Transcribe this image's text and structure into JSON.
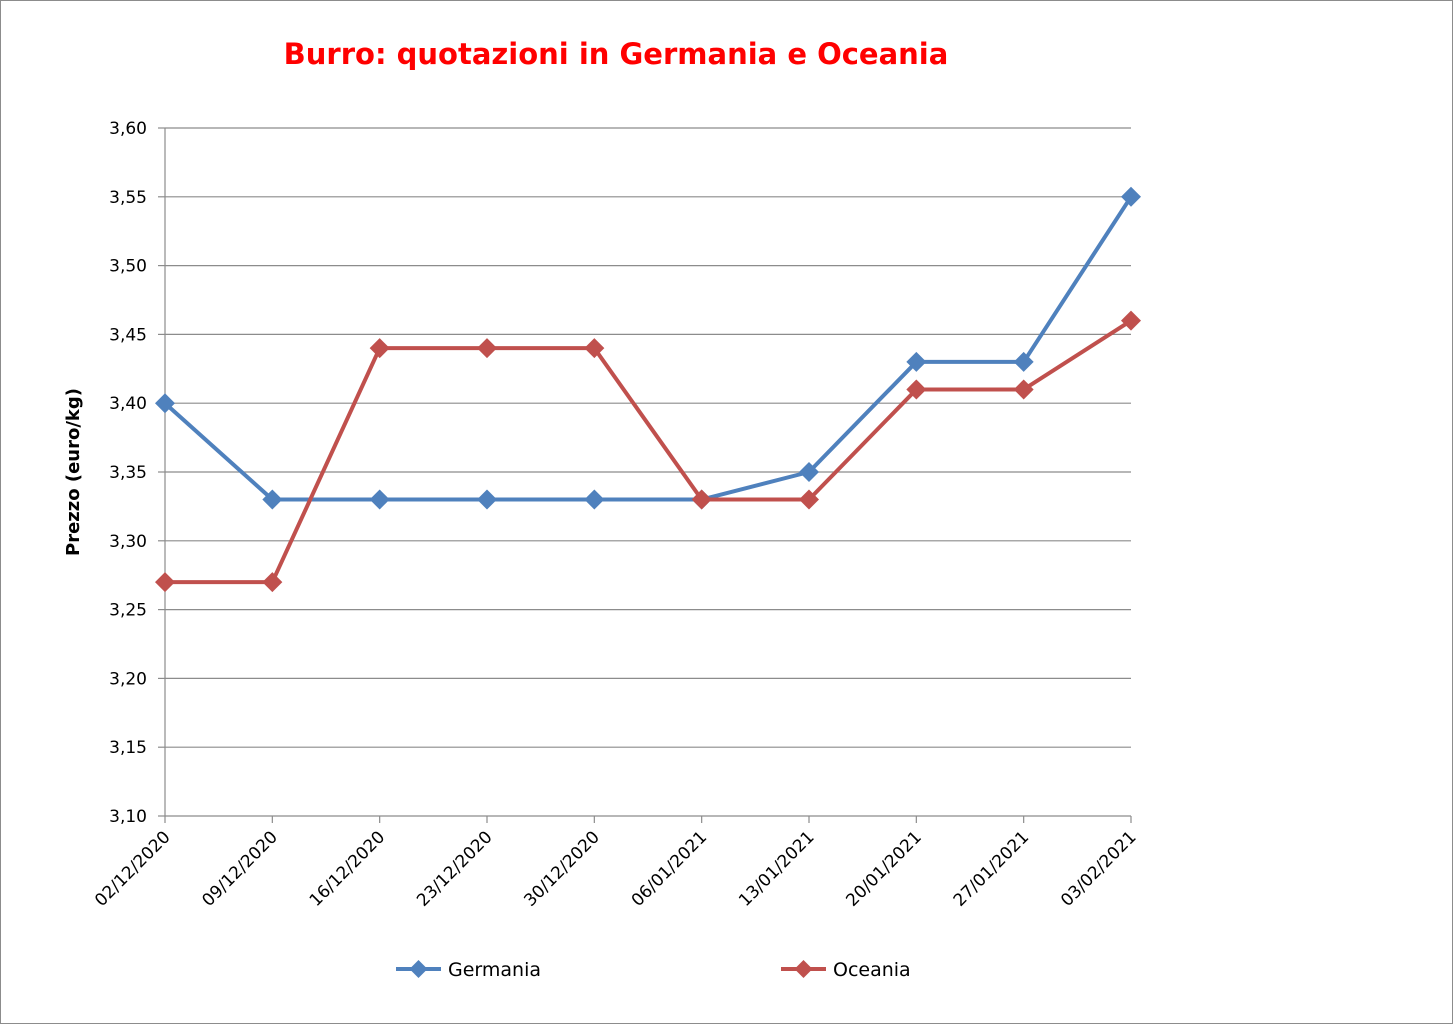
{
  "chart_data": {
    "type": "line",
    "title": "Burro: quotazioni in Germania e Oceania",
    "title_color": "#ff0000",
    "ylabel": "Prezzo (euro/kg)",
    "xlabel": "",
    "categories": [
      "02/12/2020",
      "09/12/2020",
      "16/12/2020",
      "23/12/2020",
      "30/12/2020",
      "06/01/2021",
      "13/01/2021",
      "20/01/2021",
      "27/01/2021",
      "03/02/2021"
    ],
    "ylim": [
      3.1,
      3.6
    ],
    "yticks": [
      3.1,
      3.15,
      3.2,
      3.25,
      3.3,
      3.35,
      3.4,
      3.45,
      3.5,
      3.55,
      3.6
    ],
    "ytick_labels": [
      "3,10",
      "3,15",
      "3,20",
      "3,25",
      "3,30",
      "3,35",
      "3,40",
      "3,45",
      "3,50",
      "3,55",
      "3,60"
    ],
    "grid": true,
    "legend_position": "bottom",
    "series": [
      {
        "name": "Germania",
        "color": "#4f81bd",
        "marker": "diamond",
        "values": [
          3.4,
          3.33,
          3.33,
          3.33,
          3.33,
          3.33,
          3.35,
          3.43,
          3.43,
          3.55
        ]
      },
      {
        "name": "Oceania",
        "color": "#c0504d",
        "marker": "diamond",
        "values": [
          3.27,
          3.27,
          3.44,
          3.44,
          3.44,
          3.33,
          3.33,
          3.41,
          3.41,
          3.46
        ]
      }
    ]
  }
}
